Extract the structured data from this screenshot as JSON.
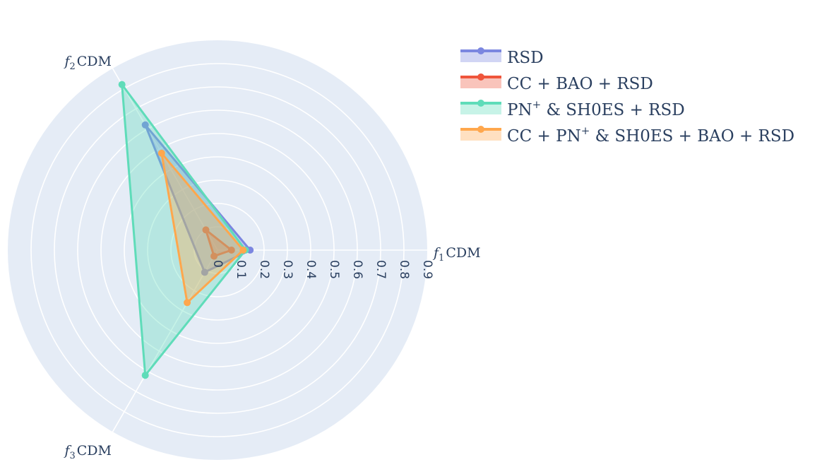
{
  "chart_data": {
    "type": "radar",
    "axes": [
      {
        "sym": "f",
        "sub": "1",
        "name": "CDM"
      },
      {
        "sym": "f",
        "sub": "2",
        "name": "CDM"
      },
      {
        "sym": "f",
        "sub": "3",
        "name": "CDM"
      }
    ],
    "radial_range": [
      0,
      0.9
    ],
    "radial_ticks": [
      0,
      0.1,
      0.2,
      0.3,
      0.4,
      0.5,
      0.6,
      0.7,
      0.8,
      0.9
    ],
    "radial_tick_labels": [
      "0",
      "0.1",
      "0.2",
      "0.3",
      "0.4",
      "0.5",
      "0.6",
      "0.7",
      "0.8",
      "0.9"
    ],
    "grid": true,
    "legend_position": "top-right",
    "series": [
      {
        "name": "RSD",
        "values": [
          0.14,
          0.62,
          0.11
        ],
        "color": "#7b86e0"
      },
      {
        "name": "CC + BAO + RSD",
        "values": [
          0.06,
          0.1,
          0.03
        ],
        "color": "#ef553b"
      },
      {
        "name": "PN",
        "name_sup": "+",
        "name_rest": " & SH0ES + RSD",
        "values": [
          0.12,
          0.82,
          0.62
        ],
        "color": "#5fdcb9"
      },
      {
        "name": "CC + PN",
        "name_sup": "+",
        "name_rest": " & SH0ES + BAO + RSD",
        "values": [
          0.11,
          0.48,
          0.26
        ],
        "color": "#ffa74d"
      }
    ]
  }
}
